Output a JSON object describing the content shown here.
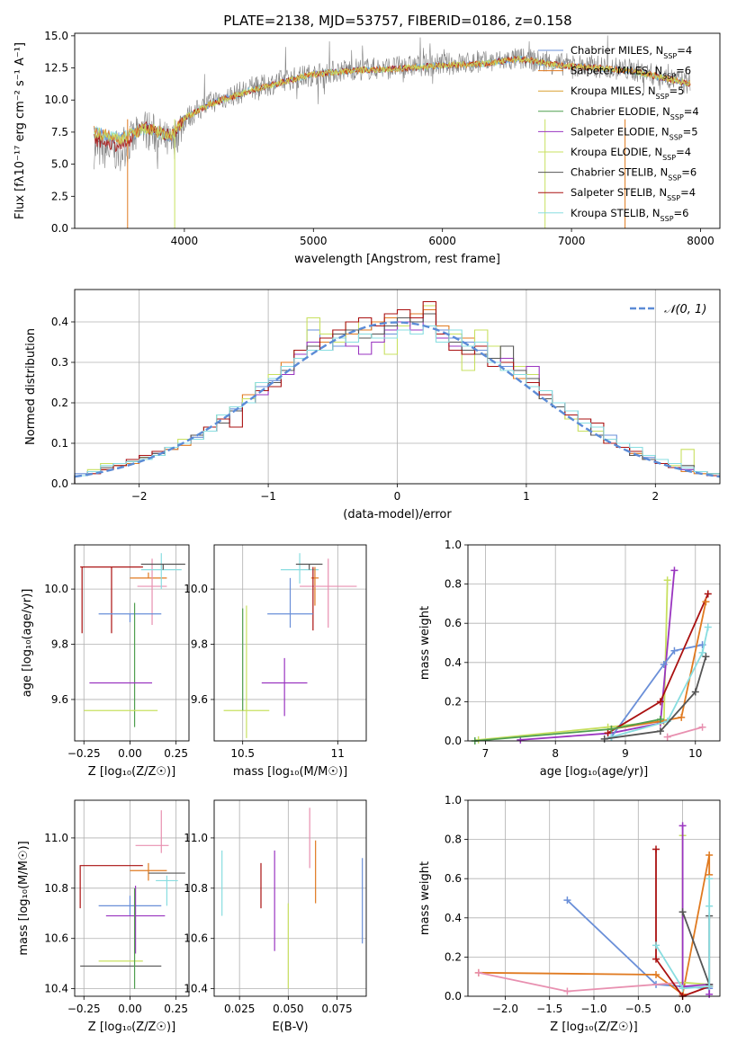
{
  "title": "PLATE=2138, MJD=53757, FIBERID=0186, z=0.158",
  "colors": {
    "chabrier_miles": "#6a8fd8",
    "salpeter_miles": "#e07a20",
    "kroupa_miles": "#d9a030",
    "chabrier_elodie": "#4f9f4f",
    "salpeter_elodie": "#9a35c0",
    "kroupa_elodie": "#c8e060",
    "chabrier_stelib": "#555555",
    "salpeter_stelib": "#aa1111",
    "kroupa_stelib": "#88dde0",
    "pink": "#e890b0",
    "data_spectrum": "#808080",
    "normal_curve": "#5b8bd6"
  },
  "chart_data": [
    {
      "type": "line",
      "title": "PLATE=2138, MJD=53757, FIBERID=0186, z=0.158",
      "xlabel": "wavelength [Angstrom, rest frame]",
      "ylabel": "Flux [fλ10⁻¹⁷ erg cm⁻² s⁻¹ A⁻¹]",
      "xlim": [
        3150,
        8150
      ],
      "ylim": [
        0,
        15.2
      ],
      "xticks": [
        4000,
        5000,
        6000,
        7000,
        8000
      ],
      "yticks": [
        0.0,
        2.5,
        5.0,
        7.5,
        10.0,
        12.5,
        15.0
      ],
      "legend_position": "right",
      "legend": [
        "Chabrier MILES, N_SSP=4",
        "Salpeter MILES, N_SSP=6",
        "Kroupa MILES, N_SSP=5",
        "Chabrier ELODIE, N_SSP=4",
        "Salpeter ELODIE, N_SSP=5",
        "Kroupa ELODIE, N_SSP=4",
        "Chabrier STELIB, N_SSP=6",
        "Salpeter STELIB, N_SSP=4",
        "Kroupa STELIB, N_SSP=6"
      ],
      "series": [
        {
          "name": "data",
          "x": [
            3300,
            3500,
            3700,
            3900,
            4000,
            4200,
            4500,
            4800,
            5000,
            5300,
            5600,
            6000,
            6300,
            6600,
            6900,
            7200,
            7500,
            7900
          ],
          "y": [
            6.2,
            6.0,
            7.8,
            6.5,
            8.5,
            9.8,
            10.8,
            11.6,
            12.0,
            12.4,
            12.5,
            12.8,
            12.9,
            13.2,
            12.8,
            12.6,
            12.3,
            11.3
          ]
        },
        {
          "name": "model",
          "x": [
            3300,
            3500,
            3700,
            3900,
            4000,
            4200,
            4500,
            4800,
            5000,
            5300,
            5600,
            6000,
            6300,
            6600,
            6900,
            7200,
            7500,
            7900
          ],
          "y": [
            7.5,
            7.0,
            7.8,
            7.2,
            8.6,
            9.7,
            10.7,
            11.5,
            12.0,
            12.3,
            12.4,
            12.7,
            12.8,
            13.2,
            12.7,
            12.5,
            12.2,
            11.3
          ]
        }
      ]
    },
    {
      "type": "bar",
      "xlabel": "(data-model)/error",
      "ylabel": "Normed distribution",
      "xlim": [
        -2.5,
        2.5
      ],
      "ylim": [
        0,
        0.48
      ],
      "xticks": [
        -2,
        -1,
        0,
        1,
        2
      ],
      "yticks": [
        0.0,
        0.1,
        0.2,
        0.3,
        0.4
      ],
      "legend": [
        "𝒩(0, 1)"
      ],
      "legend_position": "top-right",
      "bin_edges": [
        -2.5,
        -2.4,
        -2.3,
        -2.2,
        -2.1,
        -2.0,
        -1.9,
        -1.8,
        -1.7,
        -1.6,
        -1.5,
        -1.4,
        -1.3,
        -1.2,
        -1.1,
        -1.0,
        -0.9,
        -0.8,
        -0.7,
        -0.6,
        -0.5,
        -0.4,
        -0.3,
        -0.2,
        -0.1,
        0.0,
        0.1,
        0.2,
        0.3,
        0.4,
        0.5,
        0.6,
        0.7,
        0.8,
        0.9,
        1.0,
        1.1,
        1.2,
        1.3,
        1.4,
        1.5,
        1.6,
        1.7,
        1.8,
        1.9,
        2.0,
        2.1,
        2.2,
        2.3,
        2.4,
        2.5
      ],
      "histograms": [
        {
          "color": "#6a8fd8",
          "values": [
            0.025,
            0.03,
            0.04,
            0.045,
            0.055,
            0.06,
            0.075,
            0.085,
            0.1,
            0.115,
            0.14,
            0.17,
            0.185,
            0.21,
            0.24,
            0.255,
            0.29,
            0.33,
            0.38,
            0.36,
            0.34,
            0.37,
            0.38,
            0.39,
            0.37,
            0.4,
            0.41,
            0.43,
            0.38,
            0.36,
            0.35,
            0.33,
            0.31,
            0.29,
            0.27,
            0.25,
            0.23,
            0.2,
            0.18,
            0.16,
            0.14,
            0.12,
            0.1,
            0.08,
            0.065,
            0.05,
            0.04,
            0.035,
            0.03,
            0.025
          ]
        },
        {
          "color": "#e07a20",
          "values": [
            0.02,
            0.03,
            0.035,
            0.045,
            0.05,
            0.065,
            0.07,
            0.085,
            0.095,
            0.12,
            0.13,
            0.16,
            0.19,
            0.22,
            0.23,
            0.26,
            0.3,
            0.31,
            0.34,
            0.35,
            0.36,
            0.37,
            0.38,
            0.4,
            0.41,
            0.4,
            0.42,
            0.43,
            0.39,
            0.37,
            0.36,
            0.32,
            0.3,
            0.28,
            0.26,
            0.24,
            0.21,
            0.19,
            0.16,
            0.15,
            0.13,
            0.11,
            0.09,
            0.075,
            0.06,
            0.05,
            0.04,
            0.03,
            0.025,
            0.02
          ]
        },
        {
          "color": "#c8e060",
          "values": [
            0.02,
            0.035,
            0.05,
            0.045,
            0.055,
            0.065,
            0.08,
            0.09,
            0.11,
            0.12,
            0.14,
            0.17,
            0.19,
            0.21,
            0.25,
            0.27,
            0.28,
            0.33,
            0.41,
            0.37,
            0.35,
            0.4,
            0.36,
            0.37,
            0.32,
            0.39,
            0.4,
            0.44,
            0.36,
            0.37,
            0.28,
            0.38,
            0.34,
            0.31,
            0.29,
            0.27,
            0.22,
            0.2,
            0.16,
            0.13,
            0.13,
            0.1,
            0.09,
            0.08,
            0.06,
            0.05,
            0.045,
            0.085,
            0.03,
            0.025
          ]
        },
        {
          "color": "#9a35c0",
          "values": [
            0.02,
            0.03,
            0.04,
            0.05,
            0.06,
            0.07,
            0.08,
            0.09,
            0.1,
            0.12,
            0.13,
            0.15,
            0.18,
            0.2,
            0.22,
            0.26,
            0.27,
            0.32,
            0.35,
            0.33,
            0.36,
            0.34,
            0.32,
            0.35,
            0.38,
            0.4,
            0.38,
            0.42,
            0.36,
            0.34,
            0.33,
            0.35,
            0.3,
            0.31,
            0.28,
            0.29,
            0.22,
            0.2,
            0.17,
            0.15,
            0.12,
            0.11,
            0.09,
            0.07,
            0.06,
            0.05,
            0.04,
            0.035,
            0.03,
            0.02
          ]
        },
        {
          "color": "#555555",
          "values": [
            0.02,
            0.03,
            0.04,
            0.05,
            0.055,
            0.065,
            0.075,
            0.09,
            0.1,
            0.12,
            0.13,
            0.15,
            0.18,
            0.2,
            0.23,
            0.25,
            0.28,
            0.31,
            0.34,
            0.33,
            0.37,
            0.38,
            0.36,
            0.37,
            0.39,
            0.41,
            0.4,
            0.42,
            0.37,
            0.35,
            0.33,
            0.32,
            0.31,
            0.34,
            0.28,
            0.26,
            0.21,
            0.19,
            0.17,
            0.15,
            0.12,
            0.11,
            0.09,
            0.07,
            0.06,
            0.05,
            0.04,
            0.045,
            0.03,
            0.025
          ]
        },
        {
          "color": "#aa1111",
          "values": [
            0.02,
            0.025,
            0.035,
            0.045,
            0.06,
            0.07,
            0.08,
            0.09,
            0.1,
            0.11,
            0.14,
            0.16,
            0.14,
            0.2,
            0.23,
            0.24,
            0.29,
            0.33,
            0.33,
            0.36,
            0.38,
            0.4,
            0.41,
            0.39,
            0.42,
            0.43,
            0.41,
            0.45,
            0.37,
            0.33,
            0.32,
            0.34,
            0.29,
            0.3,
            0.27,
            0.25,
            0.22,
            0.2,
            0.17,
            0.16,
            0.15,
            0.1,
            0.09,
            0.08,
            0.07,
            0.05,
            0.04,
            0.04,
            0.03,
            0.02
          ]
        },
        {
          "color": "#88dde0",
          "values": [
            0.02,
            0.03,
            0.045,
            0.05,
            0.055,
            0.06,
            0.07,
            0.09,
            0.1,
            0.11,
            0.13,
            0.17,
            0.19,
            0.2,
            0.25,
            0.26,
            0.29,
            0.31,
            0.33,
            0.33,
            0.36,
            0.35,
            0.37,
            0.36,
            0.36,
            0.38,
            0.37,
            0.39,
            0.35,
            0.38,
            0.34,
            0.35,
            0.3,
            0.28,
            0.27,
            0.24,
            0.23,
            0.2,
            0.18,
            0.15,
            0.14,
            0.11,
            0.1,
            0.09,
            0.07,
            0.06,
            0.05,
            0.04,
            0.03,
            0.025
          ]
        }
      ]
    },
    {
      "type": "scatter",
      "xlabel": "Z [log₁₀(Z/Z☉)]",
      "ylabel": "age  [log₁₀(age/yr)]",
      "xlim": [
        -0.3,
        0.32
      ],
      "ylim": [
        9.45,
        10.16
      ],
      "xticks": [
        -0.25,
        0.0,
        0.25
      ],
      "xticklabels": [
        "−0.25",
        "0.00",
        "0.25"
      ],
      "yticks": [
        9.6,
        9.8,
        10.0
      ],
      "points": [
        {
          "color": "#aa1111",
          "x": -0.1,
          "xerr": 0.17,
          "y": 10.08,
          "yerr": [
            0.24,
            0.0
          ]
        },
        {
          "color": "#e07a20",
          "x": 0.1,
          "xerr": 0.1,
          "y": 10.04,
          "yerr": [
            0.0,
            0.02
          ]
        },
        {
          "color": "#e890b0",
          "x": 0.12,
          "xerr": 0.08,
          "y": 10.01,
          "yerr": [
            0.14,
            0.1
          ]
        },
        {
          "color": "#88dde0",
          "x": 0.17,
          "xerr": 0.11,
          "y": 10.07,
          "yerr": [
            0.07,
            0.06
          ]
        },
        {
          "color": "#555555",
          "x": 0.18,
          "xerr": 0.12,
          "y": 10.09,
          "yerr": [
            0.02,
            0.0
          ]
        },
        {
          "color": "#6a8fd8",
          "x": 0.0,
          "xerr": 0.17,
          "y": 9.91,
          "yerr": [
            0.03,
            0.0
          ]
        },
        {
          "color": "#4f9f4f",
          "x": 0.025,
          "xerr": 0.0,
          "y": 9.8,
          "yerr": [
            0.3,
            0.15
          ]
        },
        {
          "color": "#9a35c0",
          "x": -0.05,
          "xerr": 0.17,
          "y": 9.66,
          "yerr": [
            0.0,
            0.0
          ]
        },
        {
          "color": "#c8e060",
          "x": -0.05,
          "xerr": 0.2,
          "y": 9.56,
          "yerr": [
            0.0,
            0.0
          ]
        }
      ]
    },
    {
      "type": "scatter",
      "xlabel": "mass [log₁₀(M/M☉)]",
      "xlim": [
        10.35,
        11.15
      ],
      "ylim": [
        9.45,
        10.16
      ],
      "xticks": [
        10.5,
        11.0
      ],
      "yticks": [
        9.6,
        9.8,
        10.0
      ]
    },
    {
      "type": "line",
      "xlabel": "age  [log₁₀(age/yr)]",
      "ylabel": "mass weight",
      "xlim": [
        6.75,
        10.35
      ],
      "ylim": [
        0,
        1.0
      ],
      "xticks": [
        7,
        8,
        9,
        10
      ],
      "yticks": [
        0.0,
        0.2,
        0.4,
        0.6,
        0.8,
        1.0
      ]
    },
    {
      "type": "scatter",
      "xlabel": "Z [log₁₀(Z/Z☉)]",
      "ylabel": "mass [log₁₀(M/M☉)]",
      "xlim": [
        -0.3,
        0.32
      ],
      "ylim": [
        10.37,
        11.15
      ],
      "xticks": [
        -0.25,
        0.0,
        0.25
      ],
      "xticklabels": [
        "−0.25",
        "0.00",
        "0.25"
      ],
      "yticks": [
        10.4,
        10.6,
        10.8,
        11.0
      ]
    },
    {
      "type": "scatter",
      "xlabel": "E(B-V)",
      "xlim": [
        0.012,
        0.09
      ],
      "ylim": [
        10.37,
        11.15
      ],
      "xticks": [
        0.025,
        0.05,
        0.075
      ],
      "xticklabels": [
        "0.025",
        "0.050",
        "0.075"
      ],
      "yticks": [
        10.4,
        10.6,
        10.8,
        11.0
      ]
    },
    {
      "type": "line",
      "xlabel": "Z [log₁₀(Z/Z☉)]",
      "ylabel": "mass weight",
      "xlim": [
        -2.42,
        0.42
      ],
      "ylim": [
        0,
        1.0
      ],
      "xticks": [
        -2.0,
        -1.5,
        -1.0,
        -0.5,
        0.0
      ],
      "xticklabels": [
        "−2.0",
        "−1.5",
        "−1.0",
        "−0.5",
        "0.0"
      ],
      "yticks": [
        0.0,
        0.2,
        0.4,
        0.6,
        0.8,
        1.0
      ]
    }
  ]
}
